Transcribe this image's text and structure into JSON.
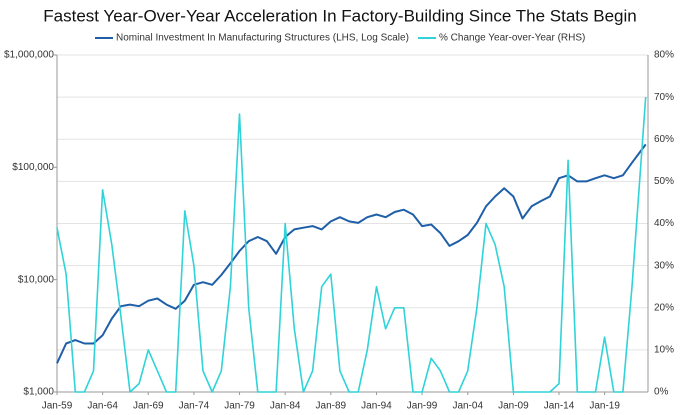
{
  "chart_data": {
    "type": "line",
    "title": "Fastest Year-Over-Year Acceleration In Factory-Building Since The Stats Begin",
    "x": [
      "1959-01",
      "1960-01",
      "1961-01",
      "1962-01",
      "1963-01",
      "1964-01",
      "1965-01",
      "1966-01",
      "1967-01",
      "1968-01",
      "1969-01",
      "1970-01",
      "1971-01",
      "1972-01",
      "1973-01",
      "1974-01",
      "1975-01",
      "1976-01",
      "1977-01",
      "1978-01",
      "1979-01",
      "1980-01",
      "1981-01",
      "1982-01",
      "1983-01",
      "1984-01",
      "1985-01",
      "1986-01",
      "1987-01",
      "1988-01",
      "1989-01",
      "1990-01",
      "1991-01",
      "1992-01",
      "1993-01",
      "1994-01",
      "1995-01",
      "1996-01",
      "1997-01",
      "1998-01",
      "1999-01",
      "2000-01",
      "2001-01",
      "2002-01",
      "2003-01",
      "2004-01",
      "2005-01",
      "2006-01",
      "2007-01",
      "2008-01",
      "2009-01",
      "2010-01",
      "2011-01",
      "2012-01",
      "2013-01",
      "2014-01",
      "2015-01",
      "2016-01",
      "2017-01",
      "2018-01",
      "2019-01",
      "2020-01",
      "2021-01",
      "2022-01",
      "2023-07"
    ],
    "series": [
      {
        "name": "Nominal Investment In Manufacturing Structures (LHS, Log Scale)",
        "color": "#1f5fa8",
        "values": [
          1800,
          2700,
          2900,
          2700,
          2700,
          3200,
          4500,
          5800,
          6000,
          5800,
          6500,
          6800,
          6000,
          5500,
          6500,
          9000,
          9500,
          9000,
          11000,
          14000,
          18000,
          22000,
          24000,
          22000,
          17000,
          24000,
          28000,
          29000,
          30000,
          28000,
          33000,
          36000,
          33000,
          32000,
          36000,
          38000,
          36000,
          40000,
          42000,
          38000,
          30000,
          31000,
          26000,
          20000,
          22000,
          25000,
          32000,
          45000,
          55000,
          65000,
          55000,
          35000,
          45000,
          50000,
          55000,
          80000,
          85000,
          75000,
          75000,
          80000,
          85000,
          80000,
          85000,
          110000,
          160000
        ]
      },
      {
        "name": "% Change Year-over-Year (RHS)",
        "color": "#2fd3d8",
        "axis": "y2",
        "values": [
          39,
          28,
          0,
          0,
          5,
          48,
          35,
          18,
          0,
          2,
          10,
          5,
          0,
          0,
          43,
          30,
          5,
          0,
          5,
          25,
          66,
          20,
          0,
          0,
          0,
          40,
          15,
          0,
          5,
          25,
          28,
          5,
          0,
          0,
          10,
          25,
          15,
          20,
          20,
          0,
          0,
          8,
          5,
          0,
          0,
          5,
          20,
          40,
          35,
          25,
          0,
          0,
          0,
          0,
          0,
          2,
          55,
          0,
          0,
          0,
          13,
          0,
          0,
          25,
          70
        ]
      }
    ],
    "xlim": [
      "1959-01",
      "2023-10"
    ],
    "xticks": [
      {
        "value": "1959-01",
        "label": "Jan-59"
      },
      {
        "value": "1964-01",
        "label": "Jan-64"
      },
      {
        "value": "1969-01",
        "label": "Jan-69"
      },
      {
        "value": "1974-01",
        "label": "Jan-74"
      },
      {
        "value": "1979-01",
        "label": "Jan-79"
      },
      {
        "value": "1984-01",
        "label": "Jan-84"
      },
      {
        "value": "1989-01",
        "label": "Jan-89"
      },
      {
        "value": "1994-01",
        "label": "Jan-94"
      },
      {
        "value": "1999-01",
        "label": "Jan-99"
      },
      {
        "value": "2004-01",
        "label": "Jan-04"
      },
      {
        "value": "2009-01",
        "label": "Jan-09"
      },
      {
        "value": "2014-01",
        "label": "Jan-14"
      },
      {
        "value": "2019-01",
        "label": "Jan-19"
      }
    ],
    "ylim": [
      1000,
      1000000
    ],
    "ylog": true,
    "yticks": [
      {
        "value": 1000,
        "label": "$1,000"
      },
      {
        "value": 10000,
        "label": "$10,000"
      },
      {
        "value": 100000,
        "label": "$100,000"
      },
      {
        "value": 1000000,
        "label": "$1,000,000"
      }
    ],
    "y2lim": [
      0,
      80
    ],
    "y2ticks": [
      {
        "value": 0,
        "label": "0%"
      },
      {
        "value": 10,
        "label": "10%"
      },
      {
        "value": 20,
        "label": "20%"
      },
      {
        "value": 30,
        "label": "30%"
      },
      {
        "value": 40,
        "label": "40%"
      },
      {
        "value": 50,
        "label": "50%"
      },
      {
        "value": 60,
        "label": "60%"
      },
      {
        "value": 70,
        "label": "70%"
      },
      {
        "value": 80,
        "label": "80%"
      }
    ],
    "grid": true,
    "legend": "top"
  }
}
